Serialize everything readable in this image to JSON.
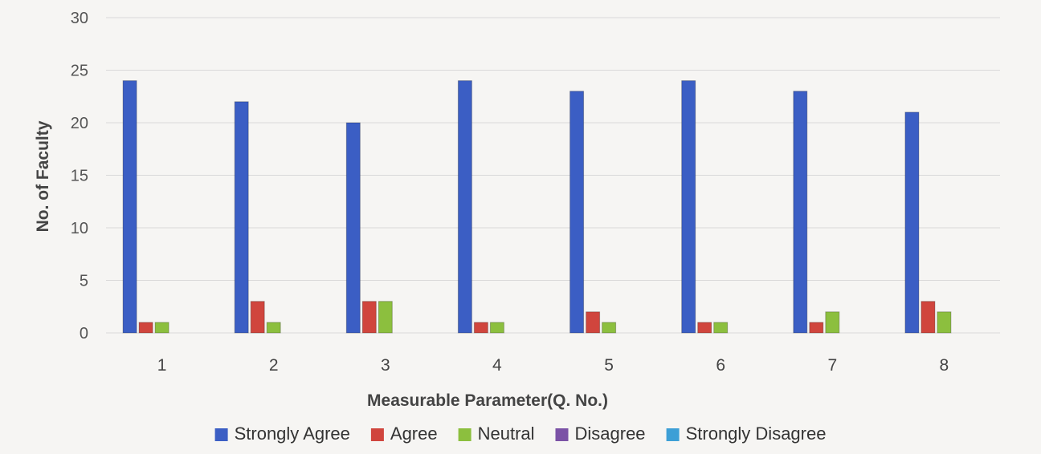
{
  "chart_data": {
    "type": "bar",
    "title": "",
    "xlabel": "Measurable Parameter(Q. No.)",
    "ylabel": "No. of Faculty",
    "categories": [
      "1",
      "2",
      "3",
      "4",
      "5",
      "6",
      "7",
      "8"
    ],
    "ylim": [
      0,
      30
    ],
    "yticks": [
      0,
      5,
      10,
      15,
      20,
      25,
      30
    ],
    "grid": true,
    "legend_position": "bottom",
    "series": [
      {
        "name": "Strongly Agree",
        "color": "#3b5ec4",
        "values": [
          24,
          22,
          20,
          24,
          23,
          24,
          23,
          21
        ]
      },
      {
        "name": "Agree",
        "color": "#d0453d",
        "values": [
          1,
          3,
          3,
          1,
          2,
          1,
          1,
          3
        ]
      },
      {
        "name": "Neutral",
        "color": "#8cbf3e",
        "values": [
          1,
          1,
          3,
          1,
          1,
          1,
          2,
          2
        ]
      },
      {
        "name": "Disagree",
        "color": "#7b52a6",
        "values": [
          0,
          0,
          0,
          0,
          0,
          0,
          0,
          0
        ]
      },
      {
        "name": "Strongly Disagree",
        "color": "#3d9fd6",
        "values": [
          0,
          0,
          0,
          0,
          0,
          0,
          0,
          0
        ]
      }
    ]
  }
}
